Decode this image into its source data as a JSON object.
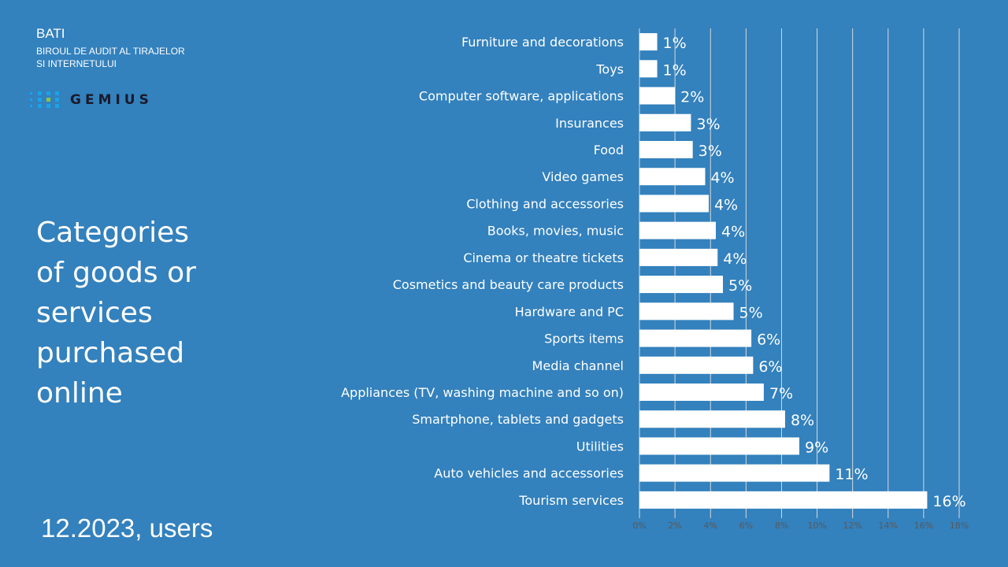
{
  "header": {
    "org": "BATI",
    "org_full_line1": "BIROUL DE AUDIT AL TIRAJELOR",
    "org_full_line2": "SI INTERNETULUI",
    "logo": "GEMIUS"
  },
  "slide_title": "Categories of goods or services purchased online",
  "footer": "12.2023, users",
  "colors": {
    "background": "#3381bd",
    "bars": "#ffffff",
    "axis_text": "#595959"
  },
  "chart_data": {
    "type": "bar",
    "orientation": "horizontal",
    "categories": [
      "Furniture and decorations",
      "Toys",
      "Computer software, applications",
      "Insurances",
      "Food",
      "Video games",
      "Clothing and accessories",
      "Books, movies, music",
      "Cinema or theatre tickets",
      "Cosmetics and beauty care products",
      "Hardware and PC",
      "Sports items",
      "Media channel",
      "Appliances (TV, washing machine and so on)",
      "Smartphone, tablets and gadgets",
      "Utilities",
      "Auto vehicles and accessories",
      "Tourism services"
    ],
    "values": [
      1.0,
      1.0,
      2.0,
      2.9,
      3.0,
      3.7,
      3.9,
      4.3,
      4.4,
      4.7,
      5.3,
      6.3,
      6.4,
      7.0,
      8.2,
      9.0,
      10.7,
      16.2
    ],
    "data_labels": [
      "1%",
      "1%",
      "2%",
      "3%",
      "3%",
      "4%",
      "4%",
      "4%",
      "4%",
      "5%",
      "5%",
      "6%",
      "6%",
      "7%",
      "8%",
      "9%",
      "11%",
      "16%"
    ],
    "xlim": [
      0,
      18
    ],
    "xticks": [
      "0%",
      "2%",
      "4%",
      "6%",
      "8%",
      "10%",
      "12%",
      "14%",
      "16%",
      "18%"
    ],
    "grid": true
  }
}
